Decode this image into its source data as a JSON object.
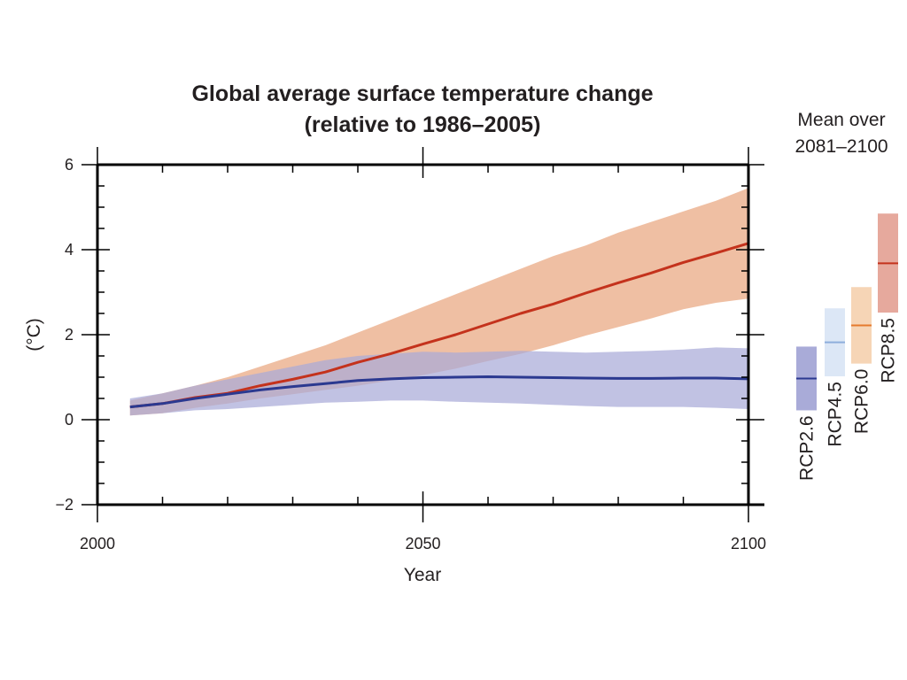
{
  "chart_data": {
    "type": "area",
    "title_line1": "Global average surface temperature change",
    "title_line2": "(relative to 1986–2005)",
    "xlabel": "Year",
    "ylabel": "(°C)",
    "xlim": [
      2000,
      2100
    ],
    "ylim": [
      -2,
      6
    ],
    "x_ticks": [
      {
        "value": 2000,
        "label": "2000"
      },
      {
        "value": 2050,
        "label": "2050"
      },
      {
        "value": 2100,
        "label": "2100"
      }
    ],
    "y_ticks": [
      {
        "value": -2,
        "label": "−2"
      },
      {
        "value": 0,
        "label": "0"
      },
      {
        "value": 2,
        "label": "2"
      },
      {
        "value": 4,
        "label": "4"
      },
      {
        "value": 6,
        "label": "6"
      }
    ],
    "grid": false,
    "series": [
      {
        "name": "RCP8.5",
        "line_color": "#c4321c",
        "band_color": "#ecb493",
        "x": [
          2005,
          2010,
          2015,
          2020,
          2025,
          2030,
          2035,
          2040,
          2045,
          2050,
          2055,
          2060,
          2065,
          2070,
          2075,
          2080,
          2085,
          2090,
          2095,
          2100
        ],
        "mean": [
          0.3,
          0.38,
          0.52,
          0.62,
          0.8,
          0.95,
          1.12,
          1.35,
          1.55,
          1.78,
          2.0,
          2.25,
          2.5,
          2.72,
          2.98,
          3.22,
          3.45,
          3.7,
          3.92,
          4.15
        ],
        "upper": [
          0.45,
          0.62,
          0.8,
          1.0,
          1.25,
          1.5,
          1.75,
          2.05,
          2.35,
          2.65,
          2.95,
          3.25,
          3.55,
          3.85,
          4.1,
          4.4,
          4.65,
          4.9,
          5.15,
          5.45
        ],
        "lower": [
          0.1,
          0.15,
          0.28,
          0.38,
          0.5,
          0.6,
          0.7,
          0.8,
          0.92,
          1.05,
          1.2,
          1.38,
          1.55,
          1.75,
          1.98,
          2.18,
          2.38,
          2.6,
          2.75,
          2.85
        ]
      },
      {
        "name": "RCP2.6",
        "line_color": "#2b3990",
        "band_color": "#a9abd8",
        "x": [
          2005,
          2010,
          2015,
          2020,
          2025,
          2030,
          2035,
          2040,
          2045,
          2050,
          2055,
          2060,
          2065,
          2070,
          2075,
          2080,
          2085,
          2090,
          2095,
          2100
        ],
        "mean": [
          0.3,
          0.38,
          0.5,
          0.6,
          0.7,
          0.78,
          0.85,
          0.92,
          0.96,
          0.99,
          1.0,
          1.01,
          1.0,
          0.99,
          0.98,
          0.97,
          0.97,
          0.98,
          0.98,
          0.96
        ],
        "upper": [
          0.5,
          0.62,
          0.8,
          0.95,
          1.1,
          1.25,
          1.4,
          1.5,
          1.55,
          1.6,
          1.58,
          1.6,
          1.62,
          1.6,
          1.58,
          1.6,
          1.62,
          1.65,
          1.7,
          1.68
        ],
        "lower": [
          0.1,
          0.15,
          0.22,
          0.25,
          0.3,
          0.35,
          0.4,
          0.42,
          0.45,
          0.45,
          0.42,
          0.4,
          0.38,
          0.35,
          0.32,
          0.3,
          0.3,
          0.3,
          0.28,
          0.25
        ]
      }
    ],
    "mean_over_title_line1": "Mean over",
    "mean_over_title_line2": "2081–2100",
    "mean_over": [
      {
        "name": "RCP2.6",
        "mean": 0.97,
        "low": 0.22,
        "high": 1.72,
        "line_color": "#2b3990",
        "box_color": "#a9abd8"
      },
      {
        "name": "RCP4.5",
        "mean": 1.82,
        "low": 1.02,
        "high": 2.62,
        "line_color": "#8eaedc",
        "box_color": "#dce7f6"
      },
      {
        "name": "RCP6.0",
        "mean": 2.22,
        "low": 1.32,
        "high": 3.12,
        "line_color": "#e57a2d",
        "box_color": "#f6d5b6"
      },
      {
        "name": "RCP8.5",
        "mean": 3.68,
        "low": 2.52,
        "high": 4.85,
        "line_color": "#c4321c",
        "box_color": "#e6a99d"
      }
    ]
  }
}
